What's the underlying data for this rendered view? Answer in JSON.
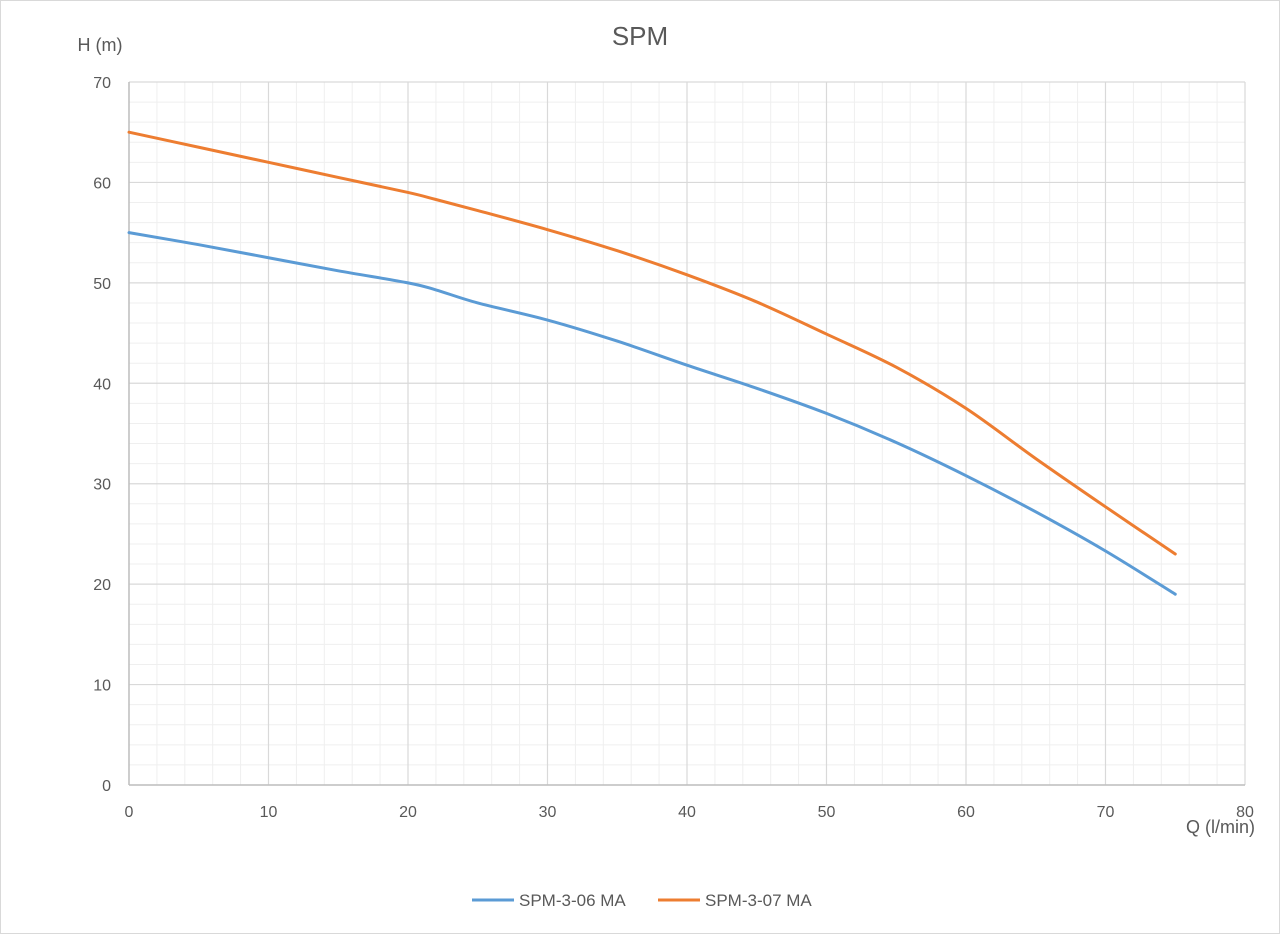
{
  "chart_data": {
    "type": "line",
    "title": "SPM",
    "xlabel": "Q (l/min)",
    "ylabel": "H (m)",
    "xlim": [
      0,
      80
    ],
    "ylim": [
      0,
      70
    ],
    "x_ticks": [
      "0",
      "10",
      "20",
      "30",
      "40",
      "50",
      "60",
      "70",
      "80"
    ],
    "y_ticks": [
      "0",
      "10",
      "20",
      "30",
      "40",
      "50",
      "60",
      "70"
    ],
    "grid": true,
    "minor_grid": true,
    "legend_position": "bottom",
    "series": [
      {
        "name": "SPM-3-06 MA",
        "color": "#5b9bd5",
        "x": [
          0,
          5,
          10,
          15,
          20,
          22,
          25,
          30,
          35,
          40,
          45,
          50,
          55,
          60,
          65,
          70,
          75
        ],
        "values": [
          55,
          53.8,
          52.5,
          51.2,
          50,
          49.3,
          48,
          46.3,
          44.2,
          41.8,
          39.5,
          37,
          34.1,
          30.8,
          27.2,
          23.3,
          19
        ]
      },
      {
        "name": "SPM-3-07 MA",
        "color": "#ed7d31",
        "x": [
          0,
          5,
          10,
          15,
          20,
          22,
          25,
          30,
          35,
          40,
          45,
          50,
          55,
          60,
          65,
          70,
          75
        ],
        "values": [
          65,
          63.5,
          62,
          60.5,
          59,
          58.3,
          57.2,
          55.3,
          53.2,
          50.8,
          48.1,
          44.9,
          41.6,
          37.5,
          32.5,
          27.7,
          23
        ]
      }
    ]
  }
}
